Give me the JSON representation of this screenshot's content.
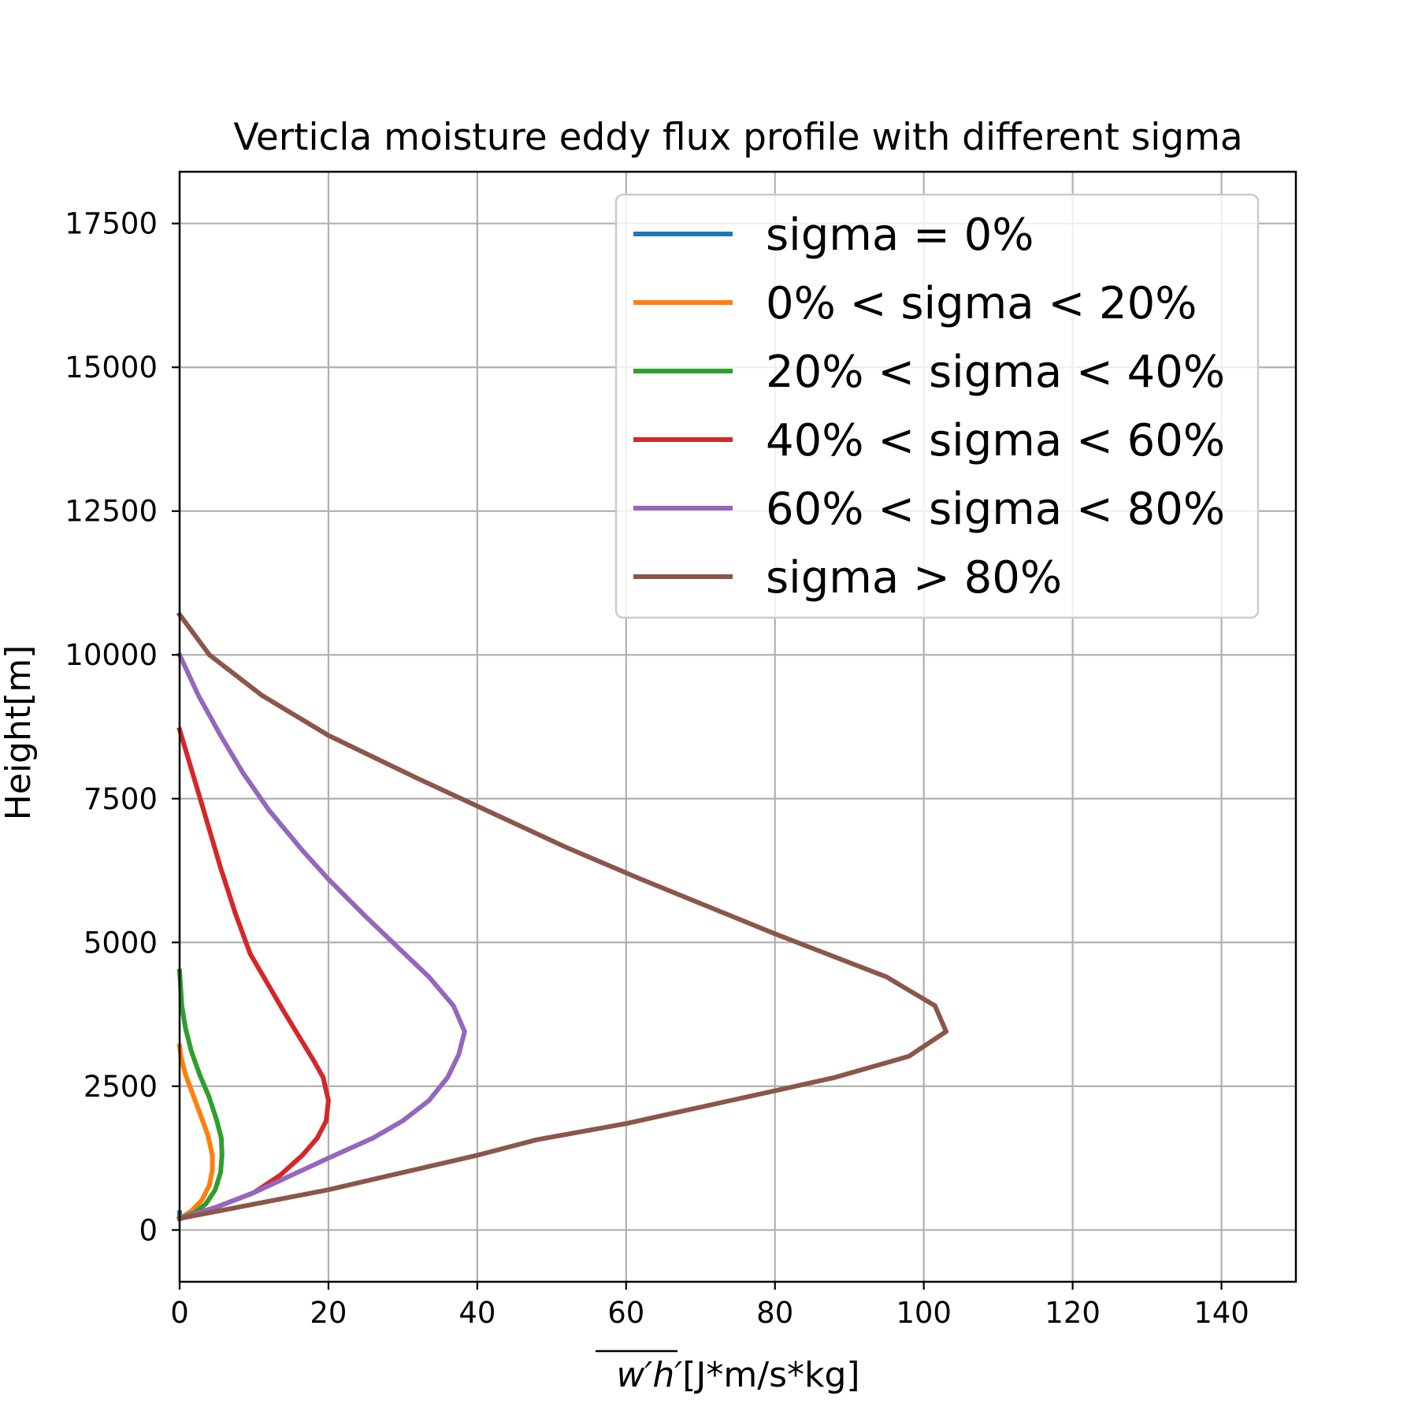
{
  "chart_data": {
    "type": "line",
    "title": "Verticla moisture eddy flux profile with different sigma",
    "xlabel_overline": "w′h′",
    "xlabel_unit": "[J*m/s*kg]",
    "ylabel": "Height[m]",
    "xlim": [
      0,
      150
    ],
    "ylim": [
      -900,
      18400
    ],
    "xticks": [
      0,
      20,
      40,
      60,
      80,
      100,
      120,
      140
    ],
    "xtick_labels": [
      "0",
      "20",
      "40",
      "60",
      "80",
      "100",
      "120",
      "140"
    ],
    "yticks": [
      0,
      2500,
      5000,
      7500,
      10000,
      12500,
      15000,
      17500
    ],
    "ytick_labels": [
      "0",
      "2500",
      "5000",
      "7500",
      "10000",
      "12500",
      "15000",
      "17500"
    ],
    "grid": true,
    "legend_position": "upper-right",
    "series": [
      {
        "name": "sigma = 0%",
        "color": "#1f77b4",
        "points": [
          [
            0,
            200
          ],
          [
            0,
            300
          ]
        ]
      },
      {
        "name": "0% < sigma < 20%",
        "color": "#ff7f0e",
        "points": [
          [
            0,
            200
          ],
          [
            1.5,
            320
          ],
          [
            3,
            520
          ],
          [
            4,
            780
          ],
          [
            4.4,
            1050
          ],
          [
            4.4,
            1300
          ],
          [
            3.8,
            1650
          ],
          [
            2.8,
            2000
          ],
          [
            1.8,
            2350
          ],
          [
            0.8,
            2700
          ],
          [
            0.2,
            3000
          ],
          [
            0,
            3200
          ]
        ]
      },
      {
        "name": "20% < sigma < 40%",
        "color": "#2ca02c",
        "points": [
          [
            0,
            200
          ],
          [
            2,
            300
          ],
          [
            3.5,
            450
          ],
          [
            4.8,
            700
          ],
          [
            5.5,
            1000
          ],
          [
            5.7,
            1300
          ],
          [
            5.6,
            1600
          ],
          [
            5,
            1900
          ],
          [
            4,
            2300
          ],
          [
            2.7,
            2700
          ],
          [
            1.6,
            3100
          ],
          [
            0.8,
            3500
          ],
          [
            0.3,
            3900
          ],
          [
            0,
            4500
          ]
        ]
      },
      {
        "name": "40% < sigma < 60%",
        "color": "#d62728",
        "points": [
          [
            0,
            200
          ],
          [
            5,
            400
          ],
          [
            10,
            650
          ],
          [
            13.5,
            950
          ],
          [
            16.5,
            1300
          ],
          [
            18.5,
            1600
          ],
          [
            19.7,
            1900
          ],
          [
            20,
            2250
          ],
          [
            19.3,
            2650
          ],
          [
            18,
            2950
          ],
          [
            14,
            3800
          ],
          [
            9.5,
            4800
          ],
          [
            7.5,
            5500
          ],
          [
            5.5,
            6300
          ],
          [
            3,
            7400
          ],
          [
            0,
            8700
          ]
        ]
      },
      {
        "name": "60% < sigma < 80%",
        "color": "#9467bd",
        "points": [
          [
            0,
            200
          ],
          [
            5,
            400
          ],
          [
            10,
            650
          ],
          [
            15,
            950
          ],
          [
            20,
            1250
          ],
          [
            26,
            1600
          ],
          [
            30,
            1900
          ],
          [
            33.5,
            2250
          ],
          [
            36,
            2650
          ],
          [
            37.5,
            3050
          ],
          [
            38.3,
            3450
          ],
          [
            36.8,
            3900
          ],
          [
            33.5,
            4400
          ],
          [
            25,
            5450
          ],
          [
            20,
            6100
          ],
          [
            16.5,
            6600
          ],
          [
            12,
            7300
          ],
          [
            8.5,
            7950
          ],
          [
            5.5,
            8600
          ],
          [
            2.5,
            9300
          ],
          [
            0,
            10000
          ]
        ]
      },
      {
        "name": "sigma > 80%",
        "color": "#8c564b",
        "points": [
          [
            0,
            200
          ],
          [
            20,
            700
          ],
          [
            40,
            1300
          ],
          [
            48,
            1570
          ],
          [
            60,
            1850
          ],
          [
            74,
            2250
          ],
          [
            88,
            2650
          ],
          [
            98,
            3020
          ],
          [
            103,
            3450
          ],
          [
            101.5,
            3900
          ],
          [
            95,
            4400
          ],
          [
            80,
            5150
          ],
          [
            62,
            6100
          ],
          [
            52,
            6650
          ],
          [
            42,
            7250
          ],
          [
            32,
            7850
          ],
          [
            20,
            8600
          ],
          [
            11,
            9300
          ],
          [
            4,
            10000
          ],
          [
            0,
            10700
          ]
        ]
      }
    ]
  }
}
